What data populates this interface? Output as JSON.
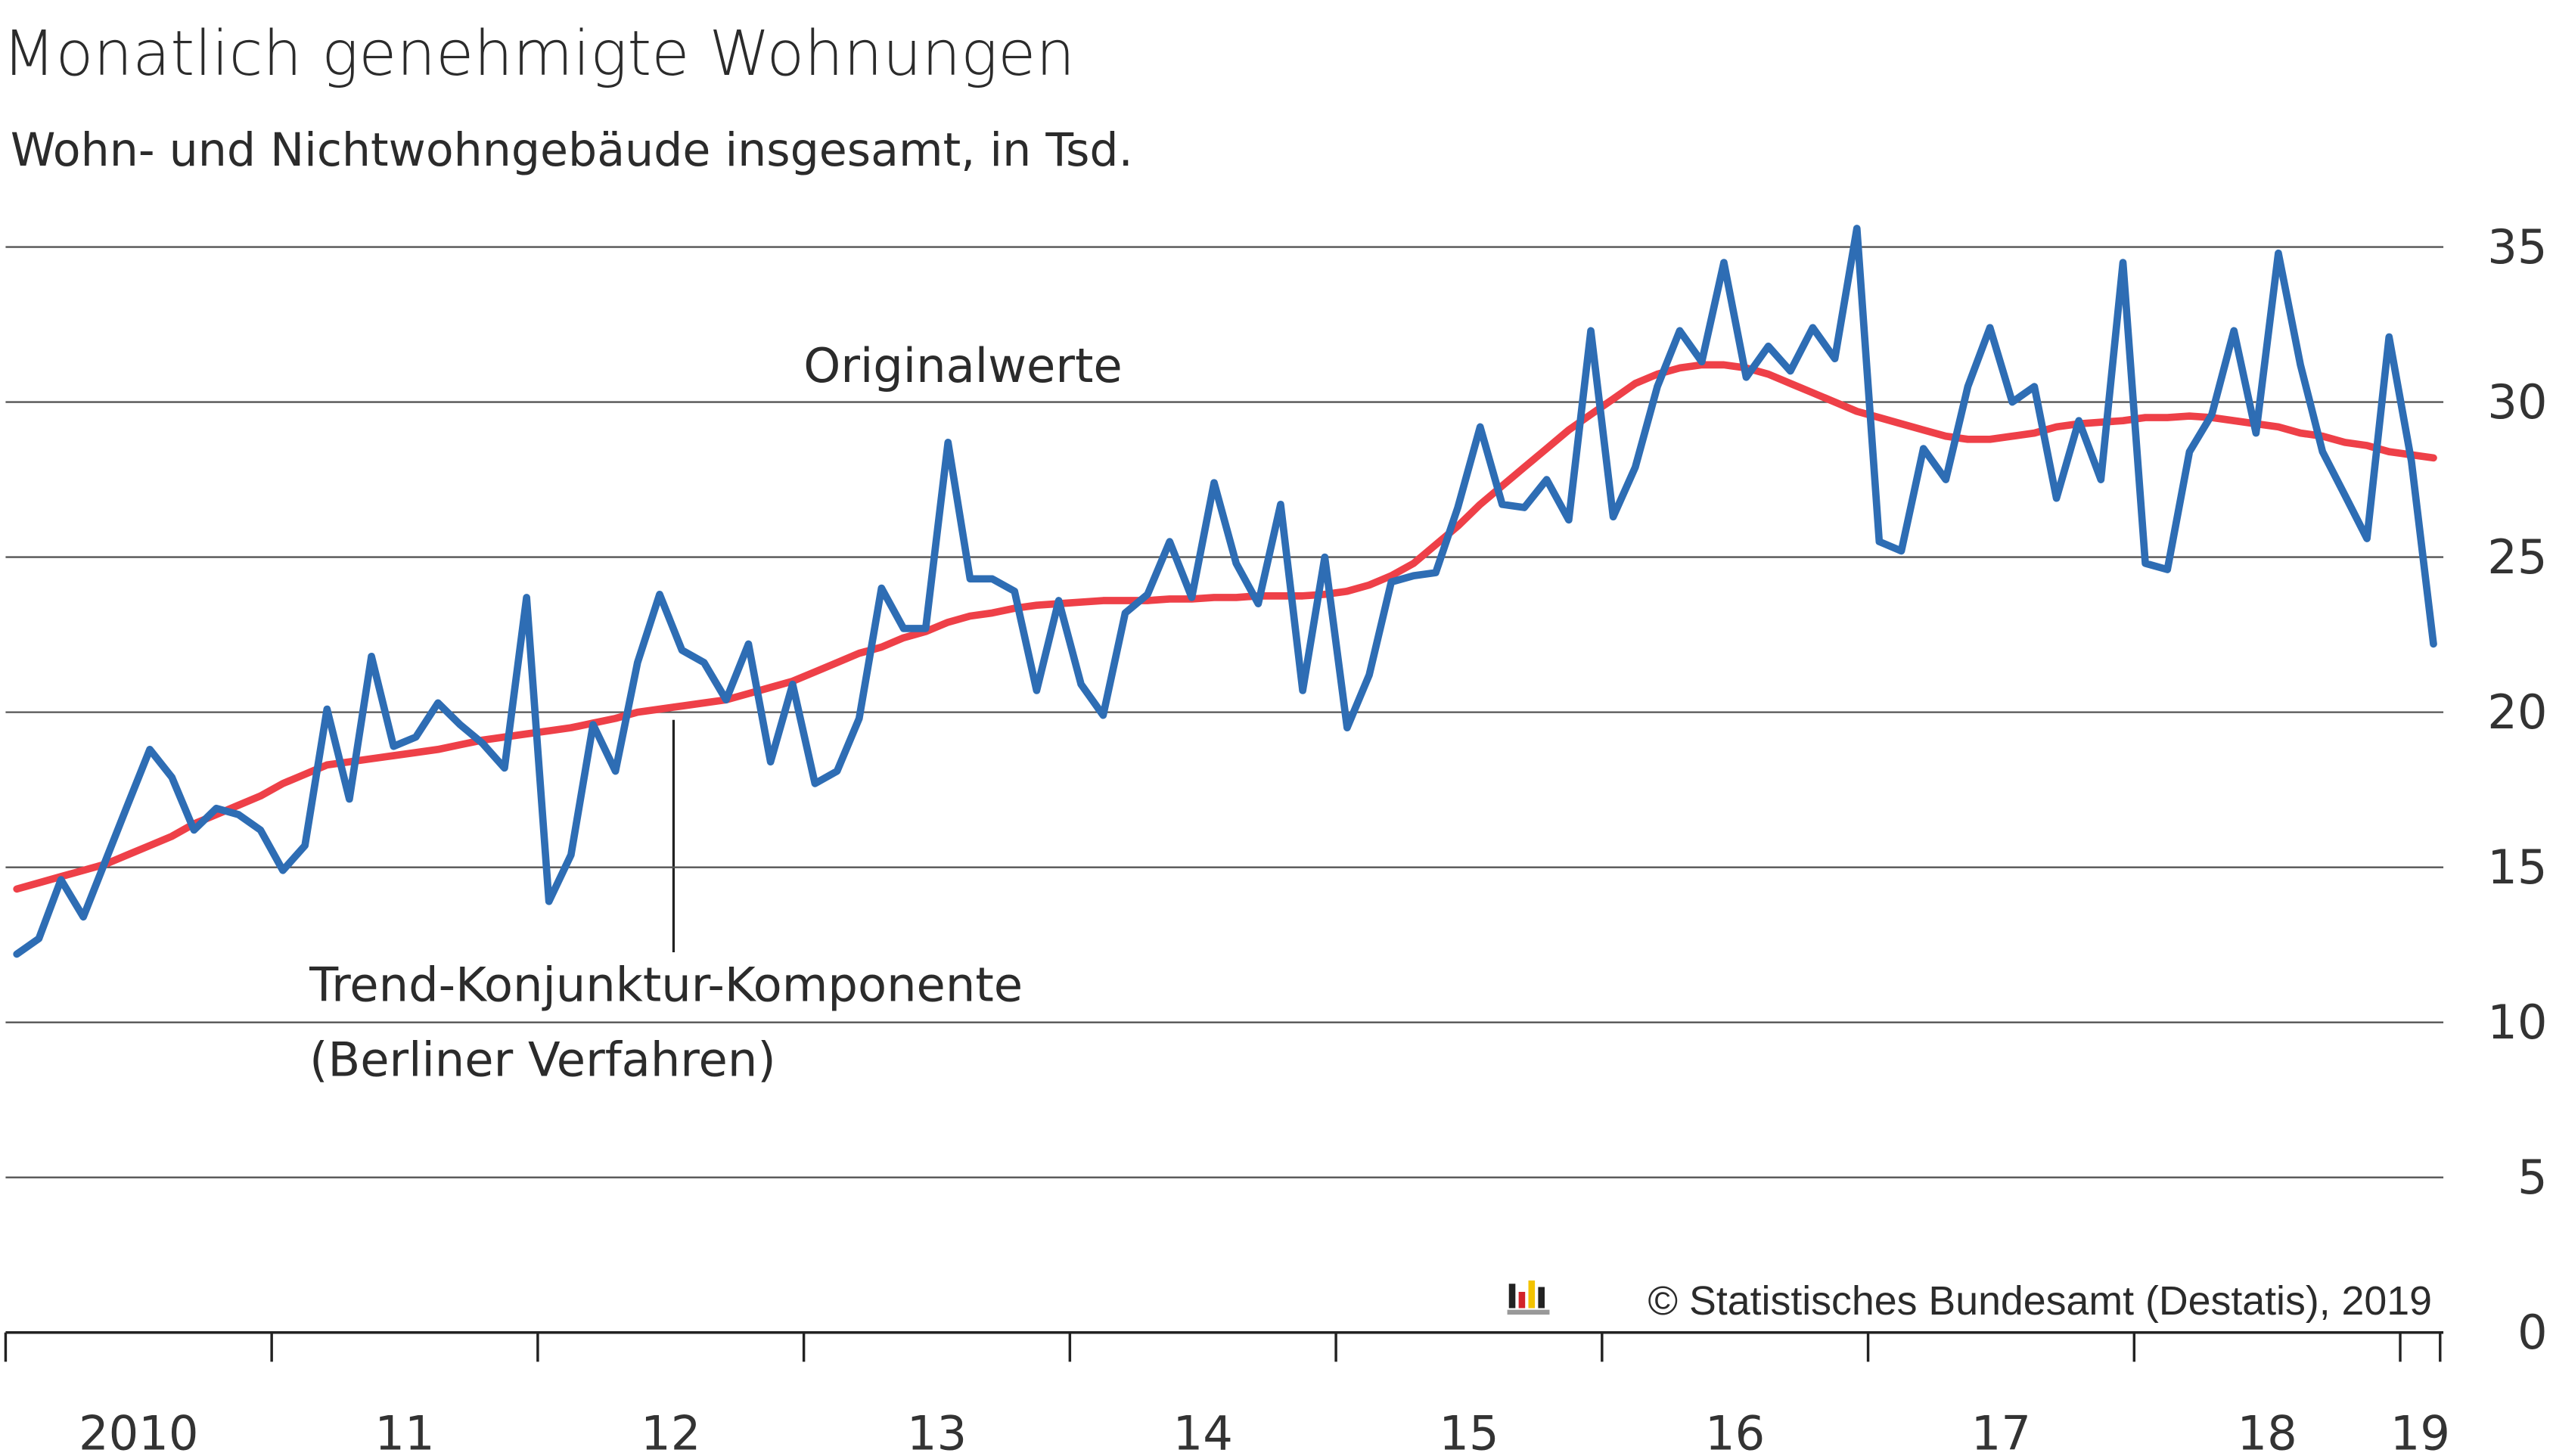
{
  "chart_data": {
    "type": "line",
    "title": "Monatlich genehmigte Wohnungen",
    "subtitle": "Wohn- und Nichtwohngebäude insgesamt, in Tsd.",
    "source": "© Statistisches Bundesamt (Destatis), 2019",
    "x": [
      2010.042,
      2010.125,
      2010.208,
      2010.292,
      2010.375,
      2010.458,
      2010.542,
      2010.625,
      2010.708,
      2010.792,
      2010.875,
      2010.958,
      2011.042,
      2011.125,
      2011.208,
      2011.292,
      2011.375,
      2011.458,
      2011.542,
      2011.625,
      2011.708,
      2011.792,
      2011.875,
      2011.958,
      2012.042,
      2012.125,
      2012.208,
      2012.292,
      2012.375,
      2012.458,
      2012.542,
      2012.625,
      2012.708,
      2012.792,
      2012.875,
      2012.958,
      2013.042,
      2013.125,
      2013.208,
      2013.292,
      2013.375,
      2013.458,
      2013.542,
      2013.625,
      2013.708,
      2013.792,
      2013.875,
      2013.958,
      2014.042,
      2014.125,
      2014.208,
      2014.292,
      2014.375,
      2014.458,
      2014.542,
      2014.625,
      2014.708,
      2014.792,
      2014.875,
      2014.958,
      2015.042,
      2015.125,
      2015.208,
      2015.292,
      2015.375,
      2015.458,
      2015.542,
      2015.625,
      2015.708,
      2015.792,
      2015.875,
      2015.958,
      2016.042,
      2016.125,
      2016.208,
      2016.292,
      2016.375,
      2016.458,
      2016.542,
      2016.625,
      2016.708,
      2016.792,
      2016.875,
      2016.958,
      2017.042,
      2017.125,
      2017.208,
      2017.292,
      2017.375,
      2017.458,
      2017.542,
      2017.625,
      2017.708,
      2017.792,
      2017.875,
      2017.958,
      2018.042,
      2018.125,
      2018.208,
      2018.292,
      2018.375,
      2018.458,
      2018.542,
      2018.625,
      2018.708,
      2018.792,
      2018.875,
      2018.958,
      2019.042,
      2019.125
    ],
    "series": [
      {
        "name": "Originalwerte",
        "color": "#2e6db4",
        "values": [
          12.2,
          12.7,
          14.6,
          13.4,
          15.2,
          17.0,
          18.8,
          17.9,
          16.2,
          16.9,
          16.7,
          16.2,
          14.9,
          15.7,
          20.1,
          17.2,
          21.8,
          18.9,
          19.2,
          20.3,
          19.6,
          19.0,
          18.2,
          23.7,
          13.9,
          15.4,
          19.6,
          18.1,
          21.6,
          23.8,
          22.0,
          21.6,
          20.4,
          22.2,
          18.4,
          20.9,
          17.7,
          18.1,
          19.8,
          24.0,
          22.7,
          22.7,
          28.7,
          24.3,
          24.3,
          23.9,
          20.7,
          23.6,
          20.9,
          19.9,
          23.2,
          23.8,
          25.5,
          23.7,
          27.4,
          24.8,
          23.5,
          26.7,
          20.7,
          25.0,
          19.5,
          21.2,
          24.2,
          24.4,
          24.5,
          26.6,
          29.2,
          26.7,
          26.6,
          27.5,
          26.2,
          32.3,
          26.3,
          27.9,
          30.5,
          32.3,
          31.3,
          34.5,
          30.8,
          31.8,
          31.0,
          32.4,
          31.4,
          35.6,
          25.5,
          25.2,
          28.5,
          27.5,
          30.5,
          32.4,
          30.0,
          30.5,
          26.9,
          29.4,
          27.5,
          34.5,
          24.8,
          24.6,
          28.4,
          29.6,
          32.3,
          29.0,
          34.8,
          31.2,
          28.4,
          27.0,
          25.6,
          32.1,
          28.1,
          22.2
        ]
      },
      {
        "name": "Trend-Konjunktur-Komponente (Berliner Verfahren)",
        "color": "#ee4048",
        "values": [
          14.3,
          14.5,
          14.7,
          14.9,
          15.1,
          15.4,
          15.7,
          16.0,
          16.4,
          16.7,
          17.0,
          17.3,
          17.7,
          18.0,
          18.3,
          18.4,
          18.5,
          18.6,
          18.7,
          18.8,
          18.95,
          19.1,
          19.2,
          19.3,
          19.4,
          19.5,
          19.65,
          19.8,
          20.0,
          20.1,
          20.2,
          20.3,
          20.4,
          20.6,
          20.8,
          21.0,
          21.3,
          21.6,
          21.9,
          22.1,
          22.4,
          22.6,
          22.9,
          23.1,
          23.2,
          23.35,
          23.45,
          23.5,
          23.55,
          23.6,
          23.6,
          23.6,
          23.65,
          23.65,
          23.7,
          23.7,
          23.75,
          23.75,
          23.75,
          23.8,
          23.9,
          24.1,
          24.4,
          24.8,
          25.4,
          26.0,
          26.7,
          27.3,
          27.9,
          28.5,
          29.1,
          29.6,
          30.1,
          30.6,
          30.9,
          31.1,
          31.2,
          31.2,
          31.1,
          30.9,
          30.6,
          30.3,
          30.0,
          29.7,
          29.5,
          29.3,
          29.1,
          28.9,
          28.8,
          28.8,
          28.9,
          29.0,
          29.2,
          29.3,
          29.35,
          29.4,
          29.5,
          29.5,
          29.55,
          29.5,
          29.4,
          29.3,
          29.2,
          29.0,
          28.9,
          28.7,
          28.6,
          28.4,
          28.3,
          28.2
        ]
      }
    ],
    "series_label_lines": [
      "Trend-Konjunktur-Komponente",
      "(Berliner Verfahren)"
    ],
    "xlim": [
      2010,
      2019.15
    ],
    "xticks": [
      {
        "value": 2010,
        "label": "2010"
      },
      {
        "value": 2011,
        "label": "11"
      },
      {
        "value": 2012,
        "label": "12"
      },
      {
        "value": 2013,
        "label": "13"
      },
      {
        "value": 2014,
        "label": "14"
      },
      {
        "value": 2015,
        "label": "15"
      },
      {
        "value": 2016,
        "label": "16"
      },
      {
        "value": 2017,
        "label": "17"
      },
      {
        "value": 2018,
        "label": "18"
      },
      {
        "value": 2019,
        "label": "19"
      }
    ],
    "ylim": [
      0,
      35
    ],
    "yticks": [
      0,
      5,
      10,
      15,
      20,
      25,
      30,
      35
    ],
    "grid": true
  }
}
